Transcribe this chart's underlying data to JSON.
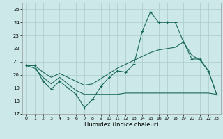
{
  "xlabel": "Humidex (Indice chaleur)",
  "bg_color": "#cce8e8",
  "grid_color": "#aacccc",
  "line_color": "#1a6a5a",
  "xlim": [
    -0.5,
    23.5
  ],
  "ylim": [
    17,
    25.5
  ],
  "yticks": [
    17,
    18,
    19,
    20,
    21,
    22,
    23,
    24,
    25
  ],
  "s1_x": [
    0,
    1,
    2,
    3,
    4,
    5,
    6,
    7,
    8,
    9,
    10,
    11,
    12,
    13,
    14,
    15,
    16,
    17,
    18,
    19,
    20,
    21,
    22,
    23
  ],
  "s1_y": [
    20.7,
    20.7,
    19.5,
    18.9,
    19.5,
    19.0,
    18.5,
    17.5,
    18.1,
    19.1,
    19.8,
    20.3,
    20.2,
    20.8,
    23.3,
    24.8,
    24.0,
    24.0,
    24.0,
    22.5,
    21.2,
    21.2,
    20.3,
    18.5
  ],
  "s2_x": [
    0,
    1,
    2,
    3,
    4,
    5,
    6,
    7,
    8,
    9,
    10,
    11,
    12,
    13,
    14,
    15,
    16,
    17,
    18,
    19,
    20,
    21,
    22,
    23
  ],
  "s2_y": [
    20.7,
    20.7,
    20.2,
    19.8,
    20.1,
    19.8,
    19.5,
    19.2,
    19.3,
    19.7,
    20.1,
    20.5,
    20.8,
    21.1,
    21.4,
    21.7,
    21.9,
    22.0,
    22.1,
    22.5,
    21.5,
    21.1,
    20.3,
    18.5
  ],
  "s3_x": [
    0,
    1,
    2,
    3,
    4,
    5,
    6,
    7,
    8,
    9,
    10,
    11,
    12,
    13,
    14,
    15,
    16,
    17,
    18,
    19,
    20,
    21,
    22,
    23
  ],
  "s3_y": [
    20.7,
    20.5,
    19.8,
    19.3,
    19.8,
    19.3,
    18.8,
    18.5,
    18.5,
    18.5,
    18.5,
    18.5,
    18.6,
    18.6,
    18.6,
    18.6,
    18.6,
    18.6,
    18.6,
    18.6,
    18.6,
    18.6,
    18.6,
    18.5
  ]
}
